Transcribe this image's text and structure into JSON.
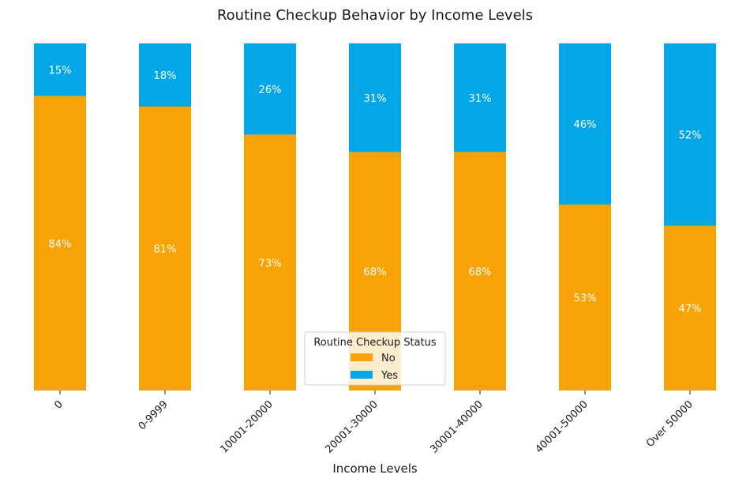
{
  "chart_data": {
    "type": "bar",
    "stacked": true,
    "normalized": true,
    "title": "Routine Checkup Behavior by Income Levels",
    "xlabel": "Income Levels",
    "ylabel": "",
    "ylim": [
      0,
      1
    ],
    "grid": false,
    "categories": [
      "0",
      "0-9999",
      "10001-20000",
      "20001-30000",
      "30001-40000",
      "40001-50000",
      "Over 50000"
    ],
    "series": [
      {
        "name": "No",
        "color": "#F7A306",
        "values": [
          84,
          81,
          73,
          68,
          68,
          53,
          47
        ],
        "labels": [
          "84%",
          "81%",
          "73%",
          "68%",
          "68%",
          "53%",
          "47%"
        ]
      },
      {
        "name": "Yes",
        "color": "#03A6E6",
        "values": [
          15,
          18,
          26,
          31,
          31,
          46,
          52
        ],
        "labels": [
          "15%",
          "18%",
          "26%",
          "31%",
          "31%",
          "46%",
          "52%"
        ]
      }
    ],
    "legend": {
      "title": "Routine Checkup Status",
      "placement": "bottom-center"
    },
    "xtick_rotation": 45
  }
}
